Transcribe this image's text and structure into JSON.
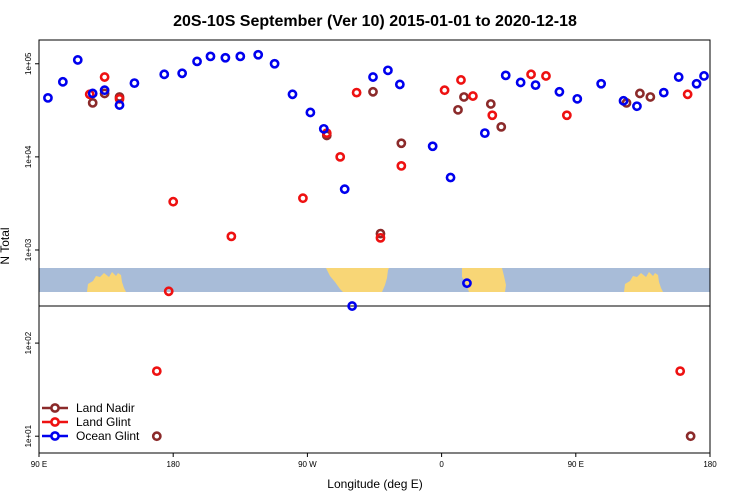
{
  "chart_data": {
    "type": "scatter",
    "title": "20S-10S September (Ver 10)   2015-01-01 to 2020-12-18",
    "xlabel": "Longitude (deg E)",
    "ylabel": "N Total",
    "x_ticks": [
      {
        "value": 90,
        "label": "90 E"
      },
      {
        "value": 180,
        "label": "180"
      },
      {
        "value": 270,
        "label": "90 W"
      },
      {
        "value": 360,
        "label": "0"
      },
      {
        "value": 450,
        "label": "90 E"
      },
      {
        "value": 540,
        "label": "180"
      }
    ],
    "y_ticks": [
      {
        "value": 10,
        "label": "1e+01"
      },
      {
        "value": 100,
        "label": "1e+02"
      },
      {
        "value": 1000,
        "label": "1e+03"
      },
      {
        "value": 10000,
        "label": "1e+04"
      },
      {
        "value": 100000,
        "label": "1e+05"
      }
    ],
    "xlim": [
      90,
      540
    ],
    "ylim": [
      6.6,
      180000
    ],
    "y_scale": "log",
    "legend_position": "bottom-left",
    "series": [
      {
        "name": "Land Nadir",
        "color": "#8b2a2a",
        "points": [
          [
            126,
            38000
          ],
          [
            134,
            48000
          ],
          [
            144,
            44000
          ],
          [
            169,
            10
          ],
          [
            283,
            17000
          ],
          [
            319,
            1500
          ],
          [
            314,
            50000
          ],
          [
            333,
            14000
          ],
          [
            371,
            32000
          ],
          [
            375,
            44000
          ],
          [
            393,
            37000
          ],
          [
            400,
            21000
          ],
          [
            484,
            38000
          ],
          [
            493,
            48000
          ],
          [
            500,
            44000
          ],
          [
            527,
            10
          ]
        ]
      },
      {
        "name": "Land Glint",
        "color": "#ee1111",
        "points": [
          [
            124,
            47000
          ],
          [
            134,
            72000
          ],
          [
            144,
            42000
          ],
          [
            169,
            50
          ],
          [
            177,
            360
          ],
          [
            180,
            3300
          ],
          [
            219,
            1400
          ],
          [
            267,
            3600
          ],
          [
            283,
            18000
          ],
          [
            292,
            10000
          ],
          [
            303,
            49000
          ],
          [
            319,
            1350
          ],
          [
            333,
            8000
          ],
          [
            362,
            52000
          ],
          [
            373,
            67000
          ],
          [
            381,
            45000
          ],
          [
            394,
            28000
          ],
          [
            420,
            77000
          ],
          [
            430,
            74000
          ],
          [
            444,
            28000
          ],
          [
            525,
            47000
          ],
          [
            520,
            50
          ]
        ]
      },
      {
        "name": "Ocean Glint",
        "color": "#0000ee",
        "points": [
          [
            96,
            43000
          ],
          [
            106,
            64000
          ],
          [
            116,
            110000
          ],
          [
            126,
            48000
          ],
          [
            134,
            52000
          ],
          [
            144,
            36000
          ],
          [
            154,
            62000
          ],
          [
            174,
            77000
          ],
          [
            186,
            79000
          ],
          [
            196,
            106000
          ],
          [
            205,
            120000
          ],
          [
            215,
            116000
          ],
          [
            225,
            120000
          ],
          [
            237,
            125000
          ],
          [
            248,
            100000
          ],
          [
            260,
            47000
          ],
          [
            272,
            30000
          ],
          [
            281,
            20000
          ],
          [
            295,
            4500
          ],
          [
            300,
            250
          ],
          [
            314,
            72000
          ],
          [
            324,
            85000
          ],
          [
            332,
            60000
          ],
          [
            354,
            13000
          ],
          [
            366,
            6000
          ],
          [
            377,
            440
          ],
          [
            389,
            18000
          ],
          [
            403,
            75000
          ],
          [
            413,
            63000
          ],
          [
            423,
            59000
          ],
          [
            439,
            50000
          ],
          [
            451,
            42000
          ],
          [
            467,
            61000
          ],
          [
            482,
            40000
          ],
          [
            491,
            35000
          ],
          [
            509,
            49000
          ],
          [
            519,
            72000
          ],
          [
            531,
            61000
          ],
          [
            536,
            74000
          ]
        ]
      }
    ]
  }
}
